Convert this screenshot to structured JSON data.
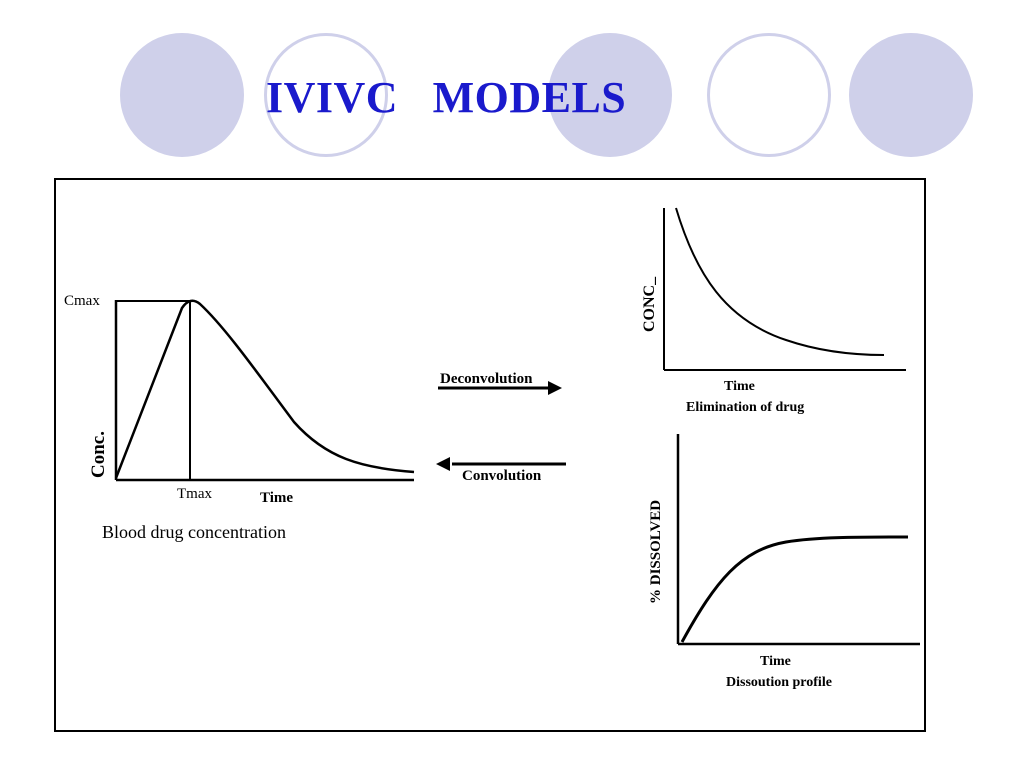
{
  "header": {
    "title": "IVIVC   MODELS"
  },
  "blood_curve": {
    "y_label": "Conc.",
    "cmax_label": "Cmax",
    "tmax_label": "Tmax",
    "x_label": "Time",
    "caption": "Blood drug concentration"
  },
  "arrows": {
    "deconvolution": "Deconvolution",
    "convolution": "Convolution"
  },
  "elimination_curve": {
    "y_label": "CONC_",
    "x_label": "Time",
    "caption": "Elimination of drug"
  },
  "dissolution_curve": {
    "y_label": "% DISSOLVED",
    "x_label": "Time",
    "caption": "Dissoution profile"
  },
  "colors": {
    "title": "#1a1acc",
    "circle": "#cfd0ea",
    "ink": "#000000"
  }
}
